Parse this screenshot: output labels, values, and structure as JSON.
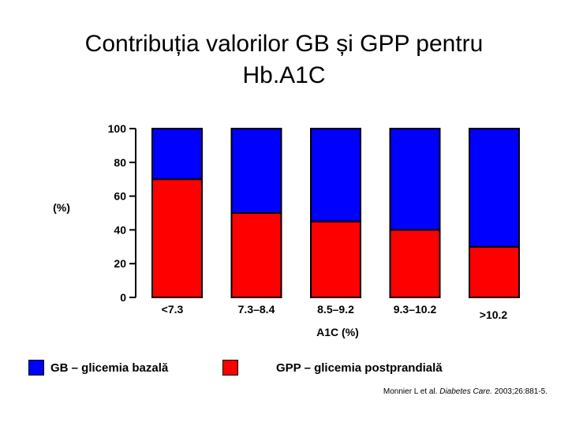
{
  "title_line1": "Contribuția valorilor GB și GPP pentru",
  "title_line2": "Hb.A1C",
  "chart_data": {
    "type": "bar",
    "stacked": true,
    "title": "Contribuția valorilor GB și GPP pentru Hb.A1C",
    "ylabel": "(%)",
    "xlabel": "A1C (%)",
    "ylim": [
      0,
      100
    ],
    "yticks": [
      0,
      20,
      40,
      60,
      80,
      100
    ],
    "categories": [
      "<7.3",
      "7.3–8.4",
      "8.5–9.2",
      "9.3–10.2",
      ">10.2"
    ],
    "series": [
      {
        "name": "GPP – glicemia postprandială",
        "color": "#ff0000",
        "values": [
          70,
          50,
          45,
          40,
          30
        ]
      },
      {
        "name": "GB – glicemia bazală",
        "color": "#0000ff",
        "values": [
          30,
          50,
          55,
          60,
          70
        ]
      }
    ]
  },
  "legend": {
    "gb_label": "GB – glicemia bazală",
    "gb_color": "#0000ff",
    "gpp_label": "GPP – glicemia postprandială",
    "gpp_color": "#ff0000"
  },
  "citation": {
    "authors": "Monnier L et al.",
    "journal": "Diabetes Care.",
    "details": "2003;26:881-5."
  }
}
